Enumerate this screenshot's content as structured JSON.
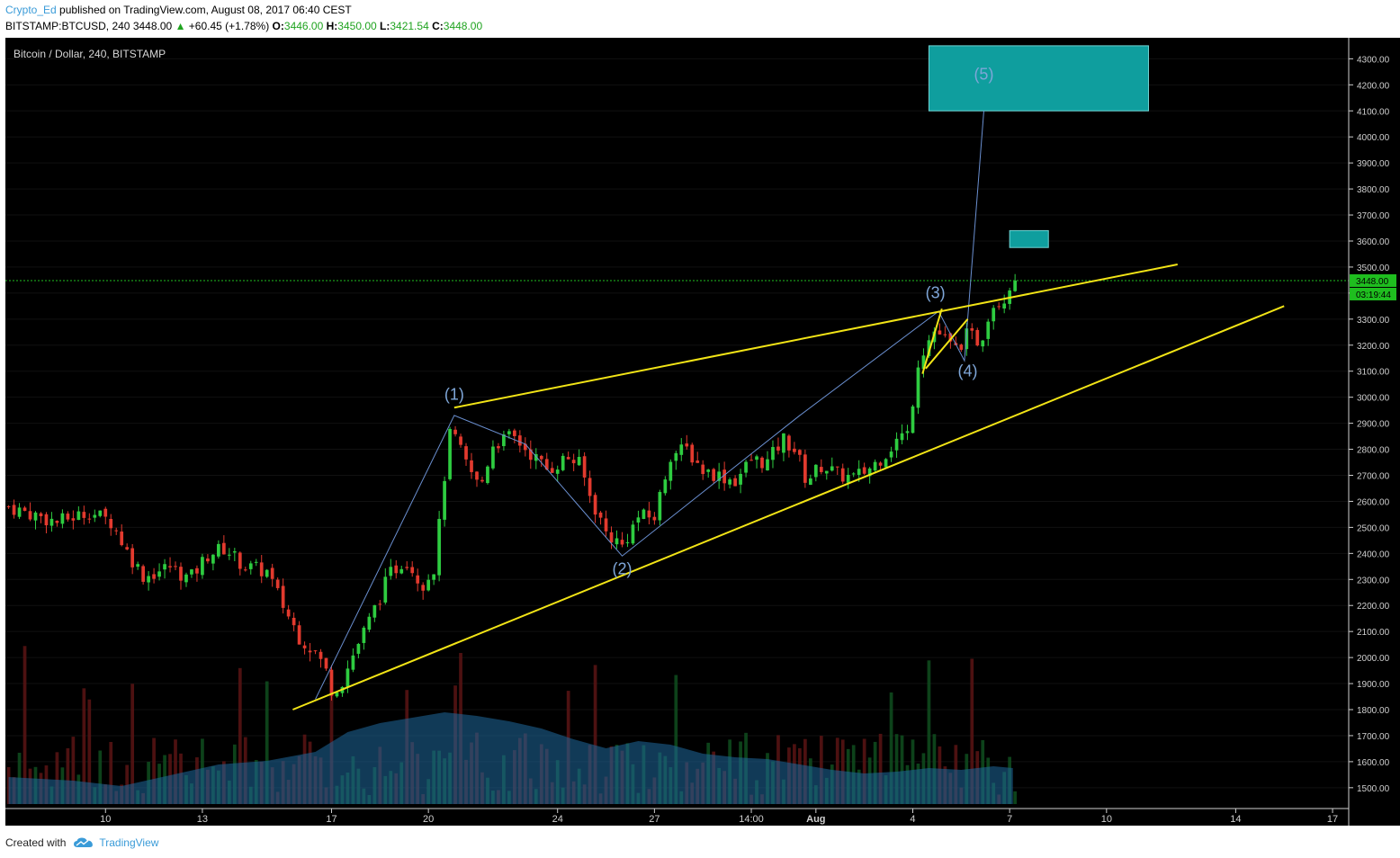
{
  "header": {
    "author": "Crypto_Ed",
    "published_text": "published on TradingView.com, August 08, 2017 06:40 CEST",
    "symbol": "BITSTAMP:BTCUSD, 240",
    "last": "3448.00",
    "change_arrow": "▲",
    "change": "+60.45 (+1.78%)",
    "o_label": "O:",
    "o_value": "3446.00",
    "h_label": "H:",
    "h_value": "3450.00",
    "l_label": "L:",
    "l_value": "3421.54",
    "c_label": "C:",
    "c_value": "3448.00"
  },
  "footer": {
    "created_with": "Created with",
    "brand": "TradingView"
  },
  "chart_data": {
    "type": "candlestick",
    "title": "Bitcoin / Dollar, 240, BITSTAMP",
    "ylim": [
      1420,
      4360
    ],
    "y_ticks": [
      1500,
      1600,
      1700,
      1800,
      1900,
      2000,
      2100,
      2200,
      2300,
      2400,
      2500,
      2600,
      2700,
      2800,
      2900,
      3000,
      3100,
      3200,
      3300,
      3400,
      3500,
      3600,
      3700,
      3800,
      3900,
      4000,
      4100,
      4200,
      4300
    ],
    "y_tick_labels": [
      "1500.00",
      "1600.00",
      "1700.00",
      "1800.00",
      "1900.00",
      "2000.00",
      "2100.00",
      "2200.00",
      "2300.00",
      "2400.00",
      "2500.00",
      "2600.00",
      "2700.00",
      "2800.00",
      "2900.00",
      "3000.00",
      "3100.00",
      "3200.00",
      "3300.00",
      "3400.00",
      "3500.00",
      "3600.00",
      "3700.00",
      "3800.00",
      "3900.00",
      "4000.00",
      "4100.00",
      "4200.00",
      "4300.00"
    ],
    "x_days": [
      10,
      13,
      17,
      20,
      24,
      27,
      30,
      32,
      35,
      38,
      41,
      45,
      48
    ],
    "x_labels": [
      "10",
      "13",
      "17",
      "20",
      "24",
      "27",
      "14:00",
      "Aug",
      "4",
      "7",
      "10",
      "14",
      "17"
    ],
    "x_label_bold": [
      false,
      false,
      false,
      false,
      false,
      false,
      false,
      true,
      false,
      false,
      false,
      false,
      false
    ],
    "x_range_days": [
      6.9,
      48.5
    ],
    "last_price": 3448,
    "last_price_label": "3448.00",
    "countdown_label": "03:19:44",
    "colors": {
      "up": "#2ecc40",
      "down": "#e23a2e",
      "trendline": "#f2e416",
      "wave": "#6a8fd0",
      "wave_label": "#7ea6d8",
      "target_box": "#0f9e9e",
      "last_price": "#1fbe1f"
    },
    "price_path": [
      [
        7.0,
        2580
      ],
      [
        8.5,
        2520
      ],
      [
        9.5,
        2560
      ],
      [
        10.2,
        2520
      ],
      [
        10.7,
        2400
      ],
      [
        11.2,
        2310
      ],
      [
        12.0,
        2350
      ],
      [
        12.6,
        2300
      ],
      [
        13.2,
        2400
      ],
      [
        13.7,
        2420
      ],
      [
        14.3,
        2350
      ],
      [
        15.0,
        2330
      ],
      [
        15.5,
        2200
      ],
      [
        16.0,
        2080
      ],
      [
        16.5,
        2020
      ],
      [
        16.8,
        1960
      ],
      [
        17.0,
        1880
      ],
      [
        17.3,
        1900
      ],
      [
        17.7,
        2020
      ],
      [
        18.2,
        2150
      ],
      [
        18.8,
        2320
      ],
      [
        19.3,
        2380
      ],
      [
        19.8,
        2280
      ],
      [
        20.2,
        2350
      ],
      [
        20.5,
        2700
      ],
      [
        20.7,
        2880
      ],
      [
        21.1,
        2760
      ],
      [
        21.6,
        2650
      ],
      [
        22.0,
        2820
      ],
      [
        22.6,
        2850
      ],
      [
        23.2,
        2780
      ],
      [
        23.7,
        2720
      ],
      [
        24.3,
        2770
      ],
      [
        24.7,
        2740
      ],
      [
        25.0,
        2620
      ],
      [
        25.5,
        2480
      ],
      [
        26.0,
        2430
      ],
      [
        26.5,
        2540
      ],
      [
        27.0,
        2540
      ],
      [
        27.5,
        2780
      ],
      [
        28.0,
        2800
      ],
      [
        28.5,
        2720
      ],
      [
        29.0,
        2700
      ],
      [
        29.5,
        2680
      ],
      [
        30.0,
        2760
      ],
      [
        30.5,
        2750
      ],
      [
        31.0,
        2840
      ],
      [
        31.4,
        2790
      ],
      [
        31.7,
        2680
      ],
      [
        32.2,
        2740
      ],
      [
        32.7,
        2700
      ],
      [
        33.2,
        2690
      ],
      [
        33.7,
        2730
      ],
      [
        34.2,
        2790
      ],
      [
        34.6,
        2850
      ],
      [
        34.9,
        2860
      ],
      [
        35.1,
        3120
      ],
      [
        35.4,
        3200
      ],
      [
        35.7,
        3260
      ],
      [
        36.0,
        3220
      ],
      [
        36.3,
        3180
      ],
      [
        36.7,
        3240
      ],
      [
        37.1,
        3210
      ],
      [
        37.4,
        3350
      ],
      [
        37.8,
        3380
      ],
      [
        38.1,
        3448
      ]
    ],
    "volume_profile": [
      [
        7.0,
        0.15
      ],
      [
        9.0,
        0.13
      ],
      [
        10.5,
        0.1
      ],
      [
        12.0,
        0.16
      ],
      [
        13.5,
        0.22
      ],
      [
        15.0,
        0.24
      ],
      [
        16.5,
        0.29
      ],
      [
        17.5,
        0.4
      ],
      [
        18.5,
        0.45
      ],
      [
        19.5,
        0.48
      ],
      [
        20.5,
        0.51
      ],
      [
        21.5,
        0.49
      ],
      [
        22.5,
        0.46
      ],
      [
        23.5,
        0.42
      ],
      [
        24.5,
        0.36
      ],
      [
        25.5,
        0.31
      ],
      [
        26.5,
        0.35
      ],
      [
        27.5,
        0.33
      ],
      [
        28.5,
        0.28
      ],
      [
        29.5,
        0.26
      ],
      [
        30.5,
        0.25
      ],
      [
        31.5,
        0.22
      ],
      [
        32.5,
        0.19
      ],
      [
        33.5,
        0.17
      ],
      [
        34.5,
        0.18
      ],
      [
        35.5,
        0.2
      ],
      [
        36.5,
        0.19
      ],
      [
        37.5,
        0.21
      ],
      [
        38.1,
        0.2
      ]
    ],
    "trendlines": [
      {
        "name": "upper",
        "from": [
          20.8,
          2960
        ],
        "to": [
          43.2,
          3510
        ]
      },
      {
        "name": "lower",
        "from": [
          15.8,
          1800
        ],
        "to": [
          46.5,
          3350
        ]
      },
      {
        "name": "flag-left",
        "from": [
          35.3,
          3090
        ],
        "to": [
          35.9,
          3340
        ]
      },
      {
        "name": "flag-right",
        "from": [
          35.4,
          3110
        ],
        "to": [
          36.7,
          3300
        ]
      }
    ],
    "wave_path": [
      [
        16.5,
        1840
      ],
      [
        20.8,
        2930
      ],
      [
        23.0,
        2820
      ],
      [
        26.0,
        2390
      ],
      [
        31.5,
        2930
      ],
      [
        35.8,
        3330
      ],
      [
        36.6,
        3140
      ],
      [
        36.7,
        3300
      ],
      [
        37.2,
        4100
      ]
    ],
    "wave_labels": [
      {
        "label": "(1)",
        "x": 20.8,
        "y": 2990
      },
      {
        "label": "(2)",
        "x": 26.0,
        "y": 2320
      },
      {
        "label": "(3)",
        "x": 35.7,
        "y": 3380
      },
      {
        "label": "(4)",
        "x": 36.7,
        "y": 3080
      },
      {
        "label": "(5)",
        "x": 37.2,
        "y": 4220
      }
    ],
    "target_boxes": [
      {
        "name": "target-zone-large",
        "x0": 35.5,
        "x1": 42.3,
        "y0": 4100,
        "y1": 4350
      },
      {
        "name": "target-zone-small",
        "x0": 38.0,
        "x1": 39.2,
        "y0": 3575,
        "y1": 3640
      }
    ]
  }
}
